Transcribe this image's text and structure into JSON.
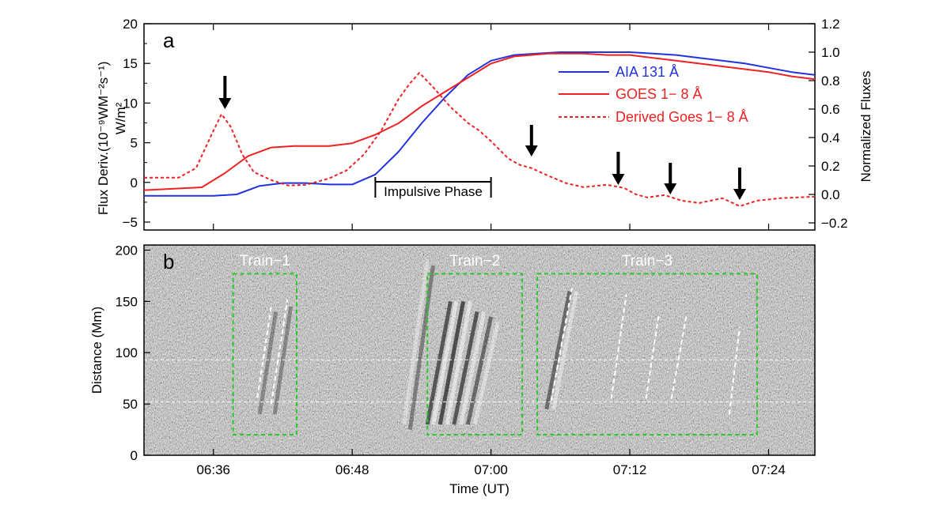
{
  "chart_data": [
    {
      "type": "line",
      "panel_label": "a",
      "xlim": [
        "06:30",
        "07:28"
      ],
      "x_ticks": [
        "06:36",
        "06:48",
        "07:00",
        "07:12",
        "07:24"
      ],
      "ylabel_left": "Flux Deriv.(10⁻⁹WM⁻²s⁻¹)",
      "ylabel_left_unit": "W/m²",
      "ylim_left": [
        -6,
        20
      ],
      "yticks_left": [
        "20",
        "15",
        "10",
        "5",
        "0",
        "−5"
      ],
      "ylabel_right": "Normalized Fluxes",
      "ylim_right": [
        -0.25,
        1.2
      ],
      "yticks_right": [
        "1.2",
        "1.0",
        "0.8",
        "0.6",
        "0.4",
        "0.2",
        "0.0",
        "−0.2"
      ],
      "legend_position": "top-right",
      "series": [
        {
          "name": "AIA 131 Å",
          "axis": "right",
          "color": "#2233dd",
          "style": "solid",
          "x": [
            "06:30",
            "06:36",
            "06:38",
            "06:40",
            "06:42",
            "06:44",
            "06:46",
            "06:48",
            "06:50",
            "06:52",
            "06:54",
            "06:56",
            "06:58",
            "07:00",
            "07:02",
            "07:04",
            "07:06",
            "07:08",
            "07:10",
            "07:12",
            "07:14",
            "07:16",
            "07:18",
            "07:20",
            "07:22",
            "07:24",
            "07:26",
            "07:28"
          ],
          "y": [
            -0.01,
            -0.01,
            0.0,
            0.06,
            0.08,
            0.08,
            0.07,
            0.07,
            0.14,
            0.3,
            0.5,
            0.68,
            0.84,
            0.94,
            0.98,
            0.99,
            1.0,
            1.0,
            1.0,
            1.0,
            0.99,
            0.98,
            0.96,
            0.94,
            0.92,
            0.89,
            0.86,
            0.84
          ]
        },
        {
          "name": "GOES 1− 8 Å",
          "axis": "right",
          "color": "#ee2222",
          "style": "solid",
          "x": [
            "06:30",
            "06:35",
            "06:37",
            "06:39",
            "06:41",
            "06:43",
            "06:46",
            "06:48",
            "06:50",
            "06:52",
            "06:54",
            "06:56",
            "06:58",
            "07:00",
            "07:02",
            "07:05",
            "07:08",
            "07:10",
            "07:12",
            "07:14",
            "07:16",
            "07:18",
            "07:20",
            "07:22",
            "07:24",
            "07:26",
            "07:28"
          ],
          "y": [
            0.03,
            0.05,
            0.15,
            0.27,
            0.33,
            0.34,
            0.34,
            0.36,
            0.42,
            0.5,
            0.62,
            0.72,
            0.82,
            0.92,
            0.97,
            0.99,
            0.99,
            0.98,
            0.98,
            0.96,
            0.94,
            0.92,
            0.9,
            0.88,
            0.86,
            0.83,
            0.81
          ]
        },
        {
          "name": "Derived Goes 1− 8 Å",
          "axis": "left",
          "color": "#ee2222",
          "style": "dashed",
          "x": [
            "06:30",
            "06:33",
            "06:34.5",
            "06:36",
            "06:36.7",
            "06:37.5",
            "06:38.5",
            "06:39.5",
            "06:41",
            "06:42.5",
            "06:44",
            "06:46",
            "06:47.5",
            "06:49",
            "06:50.5",
            "06:52",
            "06:53",
            "06:53.8",
            "06:55",
            "06:56.5",
            "06:58",
            "06:59",
            "07:00",
            "07:01.5",
            "07:02.5",
            "07:03.5",
            "07:05",
            "07:06.5",
            "07:08",
            "07:10",
            "07:11.5",
            "07:12.5",
            "07:13.5",
            "07:15",
            "07:16.5",
            "07:18",
            "07:20",
            "07:21.5",
            "07:23",
            "07:25",
            "07:28"
          ],
          "y": [
            0.6,
            0.6,
            1.8,
            6.5,
            8.6,
            7.0,
            3.5,
            1.3,
            0.3,
            -0.4,
            -0.3,
            0.5,
            1.5,
            3.5,
            6.5,
            10.5,
            12.5,
            13.8,
            12.0,
            9.5,
            7.5,
            6.5,
            5.2,
            3.0,
            2.2,
            1.8,
            0.8,
            -0.1,
            -0.6,
            -0.3,
            -0.7,
            -1.5,
            -1.9,
            -1.6,
            -2.3,
            -2.6,
            -2.0,
            -3.0,
            -2.3,
            -2.0,
            -1.8
          ]
        }
      ],
      "annotations": [
        {
          "type": "bracket",
          "text": "Impulsive Phase",
          "x_start": "06:50",
          "x_end": "07:00"
        },
        {
          "type": "arrow",
          "x": "06:37"
        },
        {
          "type": "arrow",
          "x": "07:03.5"
        },
        {
          "type": "arrow",
          "x": "07:11"
        },
        {
          "type": "arrow",
          "x": "07:15.5"
        },
        {
          "type": "arrow",
          "x": "07:21.5"
        }
      ]
    },
    {
      "type": "heatmap",
      "panel_label": "b",
      "colormap": "grayscale time-distance running-difference image",
      "xlim": [
        "06:30",
        "07:28"
      ],
      "x_ticks": [
        "06:36",
        "06:48",
        "07:00",
        "07:12",
        "07:24"
      ],
      "xlabel": "Time (UT)",
      "ylabel": "Distance (Mm)",
      "ylim": [
        0,
        205
      ],
      "yticks": [
        "200",
        "150",
        "100",
        "50",
        "0"
      ],
      "boxes": [
        {
          "label": "Train−1",
          "x_start": "06:37.7",
          "x_end": "06:43.2",
          "y_start": 20,
          "y_end": 177
        },
        {
          "label": "Train−2",
          "x_start": "06:54.5",
          "x_end": "07:02.7",
          "y_start": 20,
          "y_end": 177
        },
        {
          "label": "Train−3",
          "x_start": "07:04",
          "x_end": "07:23",
          "y_start": 20,
          "y_end": 177
        }
      ],
      "guide_lines": [
        {
          "x_start": "06:39.8",
          "x_end": "06:41.0",
          "y_start": 56,
          "y_end": 145
        },
        {
          "x_start": "06:41.0",
          "x_end": "06:42.4",
          "y_start": 50,
          "y_end": 152
        },
        {
          "x_start": "07:05.2",
          "x_end": "07:07.0",
          "y_start": 53,
          "y_end": 163
        },
        {
          "x_start": "07:10.4",
          "x_end": "07:11.7",
          "y_start": 55,
          "y_end": 157
        },
        {
          "x_start": "07:13.4",
          "x_end": "07:14.5",
          "y_start": 55,
          "y_end": 137
        },
        {
          "x_start": "07:15.6",
          "x_end": "07:16.9",
          "y_start": 55,
          "y_end": 137
        },
        {
          "x_start": "07:20.6",
          "x_end": "07:21.5",
          "y_start": 40,
          "y_end": 125
        }
      ],
      "reference_lines": [
        {
          "y": 52
        },
        {
          "y": 93
        }
      ]
    }
  ],
  "colors": {
    "aia": "#2233dd",
    "goes": "#ee2222",
    "box": "#22cc22",
    "guide": "#ffffff"
  }
}
